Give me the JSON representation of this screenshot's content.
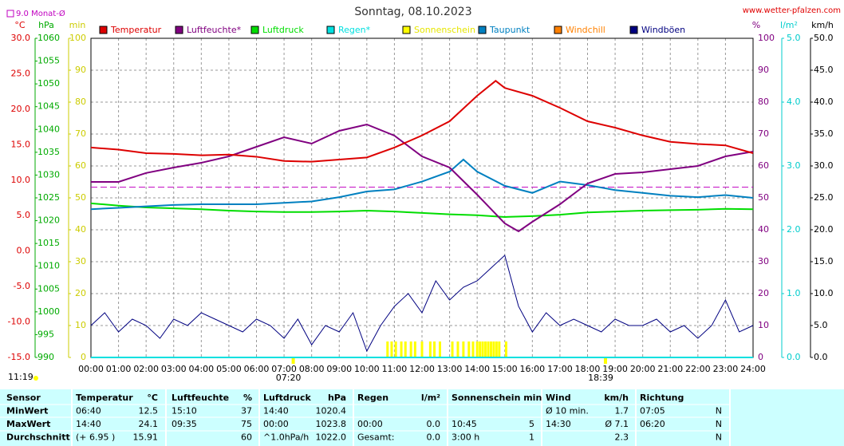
{
  "chart_data": {
    "type": "line",
    "title": "Sonntag, 08.10.2023",
    "source": "www.wetter-pfalzen.com",
    "time": "11:19",
    "monthly_mean": {
      "value": 9.0,
      "label": "9.0 Monat-Ø"
    },
    "sunrise": {
      "x": 7.333,
      "label": "07:20"
    },
    "sunset": {
      "x": 18.65,
      "label": "18:39"
    },
    "xlim": [
      0,
      24
    ],
    "xticks": [
      {
        "value": 0,
        "label": "00:00"
      },
      {
        "value": 1,
        "label": "01:00"
      },
      {
        "value": 2,
        "label": "02:00"
      },
      {
        "value": 3,
        "label": "03:00"
      },
      {
        "value": 4,
        "label": "04:00"
      },
      {
        "value": 5,
        "label": "05:00"
      },
      {
        "value": 6,
        "label": "06:00"
      },
      {
        "value": 7,
        "label": "07:00"
      },
      {
        "value": 8,
        "label": "08:00"
      },
      {
        "value": 9,
        "label": "09:00"
      },
      {
        "value": 10,
        "label": "10:00"
      },
      {
        "value": 11,
        "label": "11:00"
      },
      {
        "value": 12,
        "label": "12:00"
      },
      {
        "value": 13,
        "label": "13:00"
      },
      {
        "value": 14,
        "label": "14:00"
      },
      {
        "value": 15,
        "label": "15:00"
      },
      {
        "value": 16,
        "label": "16:00"
      },
      {
        "value": 17,
        "label": "17:00"
      },
      {
        "value": 18,
        "label": "18:00"
      },
      {
        "value": 19,
        "label": "19:00"
      },
      {
        "value": 20,
        "label": "20:00"
      },
      {
        "value": 21,
        "label": "21:00"
      },
      {
        "value": 22,
        "label": "22:00"
      },
      {
        "value": 23,
        "label": "23:00"
      },
      {
        "value": 24,
        "label": "24:00"
      }
    ],
    "ylabel": "°C",
    "ylim": [
      -15,
      30
    ],
    "yticks": [
      {
        "value": 30,
        "label": "30.0"
      },
      {
        "value": 25,
        "label": "25.0"
      },
      {
        "value": 20,
        "label": "20.0"
      },
      {
        "value": 15,
        "label": "15.0"
      },
      {
        "value": 10,
        "label": "10.0"
      },
      {
        "value": 5,
        "label": "5.0"
      },
      {
        "value": 0,
        "label": "0.0"
      },
      {
        "value": -5,
        "label": "-5.0"
      },
      {
        "value": -10,
        "label": "-10.0"
      },
      {
        "value": -15,
        "label": "-15.0"
      }
    ],
    "y2label": "hPa",
    "y2lim": [
      990,
      1060
    ],
    "y2ticks": [
      1060,
      1055,
      1050,
      1045,
      1040,
      1035,
      1030,
      1025,
      1020,
      1015,
      1010,
      1005,
      1000,
      995,
      990
    ],
    "y3label": "min",
    "y3lim": [
      0,
      100
    ],
    "y3ticks": [
      100,
      90,
      80,
      70,
      60,
      50,
      40,
      30,
      20,
      10,
      0
    ],
    "y4label": "%",
    "y4lim": [
      0,
      100
    ],
    "y4ticks": [
      100,
      90,
      80,
      70,
      60,
      50,
      40,
      30,
      20,
      10,
      0
    ],
    "y5label": "l/m²",
    "y5lim": [
      0,
      5
    ],
    "y5ticks": [
      {
        "value": 5,
        "label": "5.0"
      },
      {
        "value": 4,
        "label": "4.0"
      },
      {
        "value": 3,
        "label": "3.0"
      },
      {
        "value": 2,
        "label": "2.0"
      },
      {
        "value": 1,
        "label": "1.0"
      },
      {
        "value": 0,
        "label": "0.0"
      }
    ],
    "y6label": "km/h",
    "y6lim": [
      0,
      50
    ],
    "y6ticks": [
      {
        "value": 50,
        "label": "50.0"
      },
      {
        "value": 45,
        "label": "45.0"
      },
      {
        "value": 40,
        "label": "40.0"
      },
      {
        "value": 35,
        "label": "35.0"
      },
      {
        "value": 30,
        "label": "30.0"
      },
      {
        "value": 25,
        "label": "25.0"
      },
      {
        "value": 20,
        "label": "20.0"
      },
      {
        "value": 15,
        "label": "15.0"
      },
      {
        "value": 10,
        "label": "10.0"
      },
      {
        "value": 5,
        "label": "5.0"
      },
      {
        "value": 0,
        "label": "0.0"
      }
    ],
    "grid": true,
    "series": [
      {
        "name": "Temperatur",
        "color": "#dd0000",
        "axis": "y",
        "x": [
          0,
          1,
          2,
          3,
          4,
          5,
          6,
          7,
          8,
          9,
          10,
          11,
          12,
          13,
          14,
          14.67,
          15,
          16,
          17,
          18,
          19,
          20,
          21,
          22,
          23,
          24
        ],
        "values": [
          14.6,
          14.3,
          13.8,
          13.7,
          13.5,
          13.6,
          13.3,
          12.7,
          12.6,
          12.9,
          13.2,
          14.6,
          16.3,
          18.3,
          21.9,
          24.0,
          23.0,
          21.9,
          20.2,
          18.3,
          17.4,
          16.3,
          15.4,
          15.1,
          14.9,
          13.8
        ]
      },
      {
        "name": "Luftfeuchte*",
        "color": "#800080",
        "axis": "y4",
        "x": [
          0,
          1,
          2,
          3,
          4,
          5,
          6,
          7,
          8,
          9,
          10,
          11,
          12,
          13,
          14,
          15,
          15.5,
          16,
          17,
          18,
          19,
          20,
          21,
          22,
          23,
          24
        ],
        "values": [
          55,
          55,
          57.8,
          59.5,
          61,
          63,
          66,
          69,
          67,
          71,
          73,
          69.5,
          63,
          59.5,
          51,
          42,
          39.5,
          42.5,
          48,
          54.5,
          57.5,
          58,
          59,
          60,
          63,
          64.5
        ]
      },
      {
        "name": "Luftdruck",
        "color": "#00dd00",
        "axis": "y2",
        "x": [
          0,
          1,
          2,
          3,
          4,
          5,
          6,
          7,
          8,
          9,
          10,
          11,
          12,
          13,
          14,
          15,
          16,
          17,
          18,
          19,
          20,
          21,
          22,
          23,
          24
        ],
        "values": [
          1023.8,
          1023.3,
          1022.9,
          1022.7,
          1022.5,
          1022.2,
          1022.0,
          1021.9,
          1021.9,
          1022.0,
          1022.2,
          1022.0,
          1021.7,
          1021.4,
          1021.2,
          1020.8,
          1021.0,
          1021.3,
          1021.8,
          1022.0,
          1022.2,
          1022.3,
          1022.4,
          1022.6,
          1022.5
        ]
      },
      {
        "name": "Regen*",
        "color": "#00e0e0",
        "axis": "y5",
        "x": [
          0,
          24
        ],
        "values": [
          0,
          0
        ]
      },
      {
        "name": "Sonnenschein",
        "color": "#ffff00",
        "axis": "y3",
        "kind": "bar",
        "x": [
          10.75,
          10.9,
          11.05,
          11.25,
          11.4,
          11.6,
          11.75,
          12.0,
          12.3,
          12.45,
          12.65,
          13.1,
          13.3,
          13.5,
          13.7,
          13.85,
          14.0,
          14.1,
          14.2,
          14.3,
          14.4,
          14.5,
          14.6,
          14.7,
          14.8,
          15.05
        ],
        "values": [
          5,
          5,
          5,
          5,
          5,
          5,
          5,
          5,
          5,
          5,
          5,
          5,
          5,
          5,
          5,
          5,
          5,
          5,
          5,
          5,
          5,
          5,
          5,
          5,
          5,
          5
        ]
      },
      {
        "name": "Taupunkt",
        "color": "#0080c0",
        "axis": "y",
        "x": [
          0,
          1,
          2,
          3,
          4,
          5,
          6,
          7,
          8,
          9,
          10,
          11,
          12,
          13,
          13.5,
          14,
          15,
          16,
          17,
          18,
          19,
          20,
          21,
          22,
          23,
          24
        ],
        "values": [
          5.9,
          6.1,
          6.3,
          6.5,
          6.6,
          6.6,
          6.6,
          6.8,
          7.0,
          7.6,
          8.4,
          8.7,
          9.8,
          11.2,
          12.9,
          11.2,
          9.2,
          8.2,
          9.8,
          9.3,
          8.6,
          8.2,
          7.8,
          7.6,
          7.9,
          7.5
        ]
      },
      {
        "name": "Windchill",
        "color": "#ff8000",
        "axis": "y",
        "x": [],
        "values": []
      },
      {
        "name": "Windböen",
        "color": "#000080",
        "axis": "y6",
        "x": [
          0,
          0.5,
          1,
          1.5,
          2,
          2.5,
          3,
          3.5,
          4,
          4.5,
          5,
          5.5,
          6,
          6.5,
          7,
          7.5,
          8,
          8.5,
          9,
          9.5,
          10,
          10.5,
          11,
          11.5,
          12,
          12.5,
          13,
          13.5,
          14,
          14.5,
          15,
          15.5,
          16,
          16.5,
          17,
          17.5,
          18,
          18.5,
          19,
          19.5,
          20,
          20.5,
          21,
          21.5,
          22,
          22.5,
          23,
          23.5,
          24
        ],
        "values": [
          5,
          7,
          4,
          6,
          5,
          3,
          6,
          5,
          7,
          6,
          5,
          4,
          6,
          5,
          3,
          6,
          2,
          5,
          4,
          7,
          1,
          5,
          8,
          10,
          7,
          12,
          9,
          11,
          12,
          14,
          16,
          8,
          4,
          7,
          5,
          6,
          5,
          4,
          6,
          5,
          5,
          6,
          4,
          5,
          3,
          5,
          9,
          4,
          5
        ]
      }
    ]
  },
  "table": {
    "header": {
      "label": "Sensor",
      "t1": "Temperatur",
      "t2": "°C",
      "h1": "Luftfeuchte",
      "h2": "%",
      "p1": "Luftdruck",
      "p2": "hPa",
      "r1": "Regen",
      "r2": "l/m²",
      "s1": "Sonnenschein min",
      "w1": "Wind",
      "w2": "km/h",
      "d1": "Richtung"
    },
    "rows": [
      {
        "label": "MinWert",
        "t1": "06:40",
        "t2": "12.5",
        "h1": "15:10",
        "h2": "37",
        "p1": "14:40",
        "p2": "1020.4",
        "w1": "Ø 10 min.",
        "w2": "1.7",
        "d1": "07:05",
        "d2": "N"
      },
      {
        "label": "MaxWert",
        "t1": "14:40",
        "t2": "24.1",
        "h1": "09:35",
        "h2": "75",
        "p1": "00:00",
        "p2": "1023.8",
        "r1": "00:00",
        "r2": "0.0",
        "s1": "10:45",
        "s2": "5",
        "w1": "14:30",
        "w2": "Ø 7.1",
        "d1": "06:20",
        "d2": "N"
      },
      {
        "label": "Durchschnitt",
        "t1": "(+ 6.95 )",
        "t2": "15.91",
        "h2": "60",
        "p1": "^1.0hPa/h",
        "p2": "1022.0",
        "r1": "Gesamt:",
        "r2": "0.0",
        "s1": "3:00 h",
        "s2": "1",
        "w2": "2.3",
        "d2": "N"
      }
    ]
  }
}
